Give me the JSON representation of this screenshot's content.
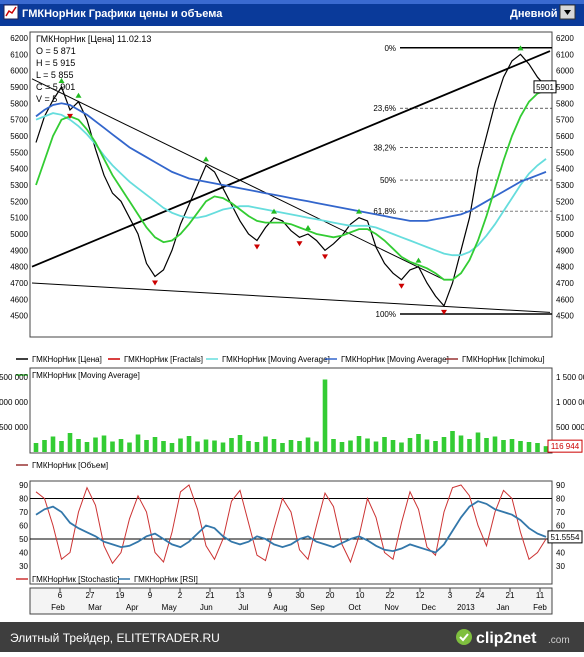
{
  "window": {
    "title": "ГМКНорНик Графики цены и объема",
    "period_button": "Дневной",
    "icon": "chart-window-icon"
  },
  "price_panel": {
    "info_title": "ГМКНорНик [Цена] 11.02.13",
    "ohlc": [
      "O = 5 871",
      "H = 5 915",
      "L = 5 855",
      "C = 5 901",
      "V = 5"
    ],
    "fib_labels": [
      "0%",
      "23,6%",
      "38,2%",
      "50%",
      "61,8%",
      "100%"
    ],
    "last_price_tag": "5901",
    "legend": [
      {
        "label": "ГМКНорНик [Цена]",
        "color": "#000000"
      },
      {
        "label": "ГМКНорНик [Fractals]",
        "color": "#cc0000"
      },
      {
        "label": "ГМКНорНик [Moving Average]",
        "color": "#66dddd"
      },
      {
        "label": "ГМКНорНик [Moving Average]",
        "color": "#3366cc"
      },
      {
        "label": "ГМКНорНик [Ichimoku]",
        "color": "#993333"
      },
      {
        "label": "ГМКНорНик [Moving Average]",
        "color": "#33cc33"
      }
    ]
  },
  "volume_panel": {
    "legend": [
      {
        "label": "ГМКНорНик [Объем]",
        "color": "#993333"
      }
    ],
    "last_value_tag": "116 944",
    "colors": {
      "bar": "#33cc33"
    }
  },
  "osc_panel": {
    "legend": [
      {
        "label": "ГМКНорНик [Stochastic]",
        "color": "#cc3333"
      },
      {
        "label": "ГМКНорНик [RSI]",
        "color": "#3377aa"
      }
    ],
    "last_value_tag": "51.5554"
  },
  "time_axis": {
    "day_ticks": [
      "6",
      "27",
      "19",
      "9",
      "2",
      "21",
      "13",
      "9",
      "30",
      "20",
      "10",
      "22",
      "12",
      "3",
      "24",
      "21",
      "11"
    ],
    "month_ticks": [
      "Feb",
      "Mar",
      "Apr",
      "May",
      "Jun",
      "Jul",
      "Aug",
      "Sep",
      "Oct",
      "Nov",
      "Dec",
      "2013",
      "Jan",
      "Feb"
    ]
  },
  "footer": {
    "text": "Элитный Трейдер, ELITETRADER.RU",
    "logo": "clip2net",
    "logo_suffix": ".com"
  },
  "chart_data": [
    {
      "type": "line",
      "name": "price",
      "x_range": [
        "2012-02",
        "2013-02-11"
      ],
      "ylim": [
        4400,
        6200
      ],
      "yticks": [
        4500,
        4600,
        4700,
        4800,
        4900,
        5000,
        5100,
        5200,
        5300,
        5400,
        5500,
        5600,
        5700,
        5800,
        5900,
        6000,
        6100,
        6200
      ],
      "grid": false,
      "legend_position": "bottom",
      "series": [
        {
          "name": "ГМКНорНик [Цена]",
          "values": [
            5560,
            5720,
            5820,
            5900,
            5760,
            5810,
            5700,
            5520,
            5360,
            5250,
            5200,
            5100,
            5000,
            4820,
            4740,
            4780,
            4900,
            5060,
            5180,
            5300,
            5420,
            5380,
            5280,
            5180,
            5080,
            5000,
            4960,
            5040,
            5100,
            5080,
            5020,
            4980,
            5000,
            4960,
            4900,
            4940,
            4990,
            5060,
            5100,
            5080,
            4920,
            4820,
            4760,
            4720,
            4780,
            4800,
            4700,
            4620,
            4560,
            4700,
            4900,
            5100,
            5400,
            5600,
            5800,
            5960,
            6060,
            6100,
            6040,
            5960,
            5901
          ]
        },
        {
          "name": "ГМКНорНик [Moving Average]",
          "values": [
            5700,
            5720,
            5740,
            5730,
            5700,
            5660,
            5610,
            5550,
            5480,
            5420,
            5370,
            5320,
            5280,
            5240,
            5200,
            5160,
            5130,
            5110,
            5100,
            5100,
            5110,
            5130,
            5150,
            5160,
            5170,
            5170,
            5160,
            5150,
            5140,
            5130,
            5120,
            5110,
            5100,
            5090,
            5080,
            5070,
            5060,
            5050,
            5050,
            5050,
            5040,
            5020,
            5000,
            4980,
            4960,
            4940,
            4920,
            4900,
            4880,
            4870,
            4870,
            4890,
            4930,
            4990,
            5060,
            5140,
            5220,
            5300,
            5370,
            5420,
            5460
          ]
        },
        {
          "name": "ГМКНорНик [Moving Average]",
          "values": [
            5720,
            5760,
            5790,
            5800,
            5790,
            5760,
            5730,
            5690,
            5650,
            5610,
            5570,
            5530,
            5500,
            5470,
            5440,
            5410,
            5380,
            5360,
            5340,
            5330,
            5320,
            5310,
            5300,
            5290,
            5280,
            5270,
            5260,
            5250,
            5240,
            5230,
            5220,
            5210,
            5200,
            5190,
            5180,
            5170,
            5160,
            5150,
            5140,
            5130,
            5120,
            5110,
            5100,
            5090,
            5080,
            5080,
            5080,
            5090,
            5100,
            5110,
            5120,
            5140,
            5170,
            5200,
            5230,
            5260,
            5290,
            5320,
            5340,
            5360,
            5380
          ]
        },
        {
          "name": "ГМКНорНик [Moving Average]",
          "values": [
            5300,
            5450,
            5600,
            5700,
            5720,
            5700,
            5640,
            5560,
            5460,
            5360,
            5280,
            5200,
            5120,
            5040,
            4980,
            4950,
            4960,
            5000,
            5060,
            5130,
            5200,
            5230,
            5220,
            5190,
            5150,
            5110,
            5080,
            5070,
            5070,
            5070,
            5060,
            5040,
            5020,
            5000,
            4990,
            4980,
            4990,
            5010,
            5030,
            5030,
            5000,
            4960,
            4910,
            4860,
            4830,
            4810,
            4790,
            4760,
            4720,
            4720,
            4760,
            4840,
            4960,
            5110,
            5280,
            5450,
            5600,
            5720,
            5810,
            5860,
            5880
          ]
        }
      ],
      "trendlines": [
        {
          "from": [
            "2012-02",
            4800
          ],
          "to": [
            "2013-02",
            6120
          ]
        },
        {
          "from": [
            "2012-02",
            5950
          ],
          "to": [
            "2012-11",
            4720
          ]
        },
        {
          "from": [
            "2012-02",
            4700
          ],
          "to": [
            "2013-02",
            4520
          ]
        }
      ],
      "fibonacci": [
        {
          "label": "0%",
          "value": 6140
        },
        {
          "label": "23,6%",
          "value": 5770
        },
        {
          "label": "38,2%",
          "value": 5530
        },
        {
          "label": "50%",
          "value": 5330
        },
        {
          "label": "61,8%",
          "value": 5140
        },
        {
          "label": "100%",
          "value": 4510
        }
      ],
      "last_value": 5901
    },
    {
      "type": "bar",
      "name": "volume",
      "ylim": [
        0,
        1600000
      ],
      "yticks_left": [
        "500 000",
        "1 000 000",
        "1 500 000"
      ],
      "yticks_right": [
        "500 000",
        "1 000 000",
        "1 500 000"
      ],
      "series": [
        {
          "name": "ГМКНорНик [Объем]",
          "values": [
            180000,
            240000,
            310000,
            220000,
            380000,
            260000,
            200000,
            290000,
            330000,
            210000,
            260000,
            190000,
            350000,
            240000,
            300000,
            220000,
            180000,
            270000,
            320000,
            210000,
            250000,
            230000,
            190000,
            280000,
            340000,
            220000,
            200000,
            310000,
            260000,
            180000,
            240000,
            220000,
            290000,
            210000,
            1450000,
            260000,
            200000,
            230000,
            320000,
            270000,
            210000,
            300000,
            240000,
            190000,
            280000,
            360000,
            250000,
            220000,
            300000,
            420000,
            330000,
            260000,
            390000,
            280000,
            310000,
            240000,
            260000,
            220000,
            200000,
            180000,
            116944
          ]
        }
      ],
      "last_value": 116944
    },
    {
      "type": "line",
      "name": "oscillators",
      "ylim": [
        30,
        90
      ],
      "yticks": [
        30,
        40,
        50,
        60,
        70,
        80,
        90
      ],
      "levels": [
        80,
        50
      ],
      "series": [
        {
          "name": "ГМКНорНик [Stochastic]",
          "values": [
            85,
            80,
            60,
            35,
            40,
            70,
            88,
            75,
            45,
            32,
            40,
            65,
            82,
            70,
            40,
            33,
            55,
            85,
            90,
            72,
            45,
            35,
            50,
            78,
            86,
            62,
            38,
            34,
            58,
            80,
            70,
            42,
            35,
            60,
            84,
            74,
            46,
            33,
            52,
            80,
            66,
            40,
            35,
            62,
            85,
            72,
            44,
            38,
            70,
            88,
            90,
            82,
            60,
            45,
            70,
            86,
            80,
            55,
            35,
            40,
            50
          ]
        },
        {
          "name": "ГМКНорНик [RSI]",
          "values": [
            68,
            72,
            74,
            70,
            62,
            58,
            55,
            52,
            48,
            46,
            44,
            45,
            48,
            52,
            54,
            50,
            46,
            44,
            48,
            54,
            60,
            58,
            52,
            48,
            46,
            48,
            52,
            50,
            46,
            44,
            46,
            50,
            52,
            48,
            46,
            44,
            47,
            50,
            52,
            49,
            45,
            42,
            41,
            43,
            46,
            44,
            42,
            40,
            46,
            56,
            66,
            74,
            78,
            76,
            72,
            70,
            68,
            64,
            58,
            54,
            51.5554
          ]
        }
      ],
      "last_value": 51.5554
    }
  ]
}
